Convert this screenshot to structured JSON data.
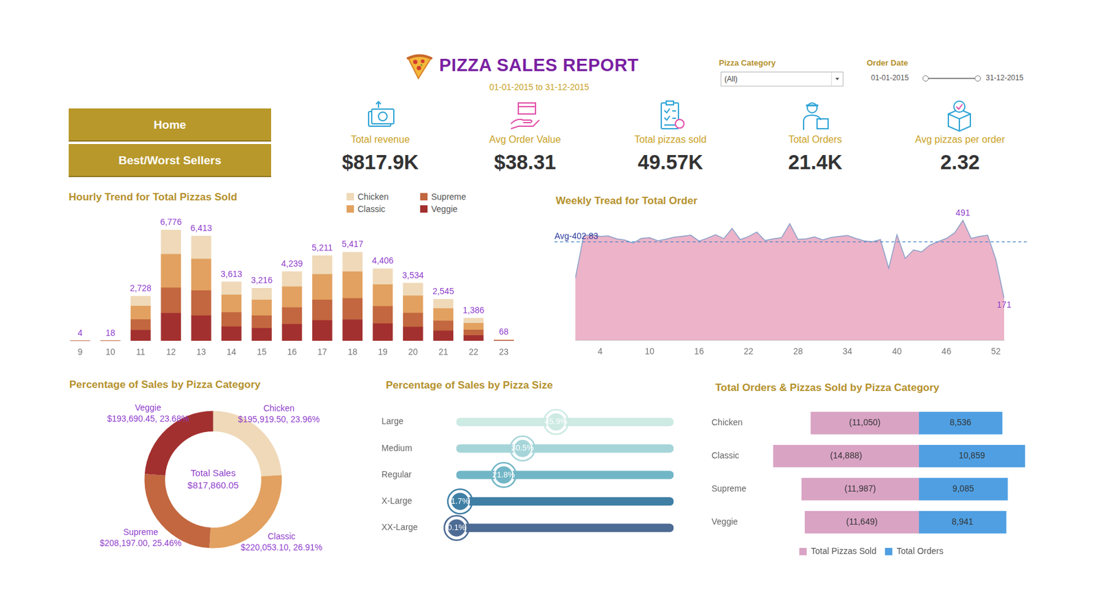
{
  "header": {
    "title": "PIZZA SALES REPORT",
    "subtitle": "01-01-2015 to 31-12-2015"
  },
  "filters": {
    "category_label": "Pizza Category",
    "category_value": "(All)",
    "date_label": "Order Date",
    "date_start": "01-01-2015",
    "date_end": "31-12-2015"
  },
  "nav": [
    "Home",
    "Best/Worst Sellers"
  ],
  "kpis": [
    {
      "label": "Total revenue",
      "value": "$817.9K"
    },
    {
      "label": "Avg Order Value",
      "value": "$38.31"
    },
    {
      "label": "Total pizzas sold",
      "value": "49.57K"
    },
    {
      "label": "Total Orders",
      "value": "21.4K"
    },
    {
      "label": "Avg pizzas per order",
      "value": "2.32"
    }
  ],
  "chart_data": [
    {
      "type": "bar",
      "title": "Hourly Trend for Total Pizzas Sold",
      "categories": [
        "9",
        "10",
        "11",
        "12",
        "13",
        "14",
        "15",
        "16",
        "17",
        "18",
        "19",
        "20",
        "21",
        "22",
        "23"
      ],
      "series": [
        {
          "name": "Chicken",
          "color": "#efd9b8",
          "values": [
            1,
            4,
            600,
            1480,
            1410,
            795,
            708,
            933,
            1146,
            1192,
            969,
            777,
            560,
            305,
            15
          ]
        },
        {
          "name": "Classic",
          "color": "#e2a160",
          "values": [
            1,
            5,
            820,
            2050,
            1925,
            1085,
            965,
            1272,
            1563,
            1625,
            1322,
            1060,
            764,
            416,
            20
          ]
        },
        {
          "name": "Supreme",
          "color": "#c2673f",
          "values": [
            1,
            4,
            655,
            1560,
            1540,
            867,
            772,
            1017,
            1251,
            1300,
            1058,
            849,
            611,
            333,
            17
          ]
        },
        {
          "name": "Veggie",
          "color": "#a2302f",
          "values": [
            1,
            5,
            653,
            1686,
            1538,
            866,
            771,
            1017,
            1251,
            1300,
            1057,
            848,
            610,
            332,
            16
          ]
        }
      ],
      "totals": [
        4,
        18,
        2728,
        6776,
        6413,
        3613,
        3216,
        4239,
        5211,
        5417,
        4406,
        3534,
        2545,
        1386,
        68
      ],
      "total_labels": [
        "4",
        "18",
        "2,728",
        "6,776",
        "6,413",
        "3,613",
        "3,216",
        "4,239",
        "5,211",
        "5,417",
        "4,406",
        "3,534",
        "2,545",
        "1,386",
        "68"
      ],
      "ylim": [
        0,
        7200
      ],
      "stacked": true,
      "tick_labels": "x",
      "legend": "top"
    },
    {
      "type": "area",
      "title": "Weekly Tread for Total Order",
      "x": [
        1,
        2,
        3,
        4,
        5,
        6,
        7,
        8,
        9,
        10,
        11,
        12,
        13,
        14,
        15,
        16,
        17,
        18,
        19,
        20,
        21,
        22,
        23,
        24,
        25,
        26,
        27,
        28,
        29,
        30,
        31,
        32,
        33,
        34,
        35,
        36,
        37,
        38,
        39,
        40,
        41,
        42,
        43,
        44,
        45,
        46,
        47,
        48,
        49,
        50,
        51,
        52,
        53
      ],
      "values": [
        254,
        428,
        432,
        425,
        427,
        415,
        410,
        398,
        417,
        420,
        407,
        414,
        422,
        426,
        430,
        406,
        418,
        432,
        416,
        458,
        412,
        425,
        443,
        408,
        415,
        420,
        477,
        413,
        415,
        423,
        411,
        421,
        425,
        429,
        417,
        407,
        403,
        412,
        295,
        432,
        335,
        370,
        362,
        390,
        404,
        417,
        440,
        491,
        417,
        425,
        430,
        330,
        171
      ],
      "color": "#ecb3c9",
      "xlim": [
        1,
        53
      ],
      "xticks": [
        4,
        10,
        16,
        22,
        28,
        34,
        40,
        46,
        52
      ],
      "ylim": [
        0,
        540
      ],
      "tick_labels": "x",
      "reference_line": {
        "value": 402.83,
        "label": "Avg-402.83"
      },
      "annotations": [
        {
          "x": 48,
          "text": "491"
        },
        {
          "x": 53,
          "text": "171"
        }
      ]
    },
    {
      "type": "doughnut",
      "title": "Percentage of Sales by Pizza Category",
      "categories": [
        "Chicken",
        "Classic",
        "Supreme",
        "Veggie"
      ],
      "values": [
        195919.5,
        220053.1,
        208197.0,
        193690.45
      ],
      "value_labels": [
        "$195,919.50, 23.96%",
        "$220,053.10, 26.91%",
        "$208,197.00, 25.46%",
        "$193,690.45, 23.68%"
      ],
      "colors": [
        "#efd9b8",
        "#e2a160",
        "#c2673f",
        "#a2302f"
      ],
      "center_label": "Total Sales",
      "total": 817860.05,
      "total_label": "$817,860.05",
      "data_labels": true
    },
    {
      "type": "bar",
      "title": "Percentage of Sales by Pizza Size",
      "orientation": "horizontal",
      "categories": [
        "Large",
        "Medium",
        "Regular",
        "X-Large",
        "XX-Large"
      ],
      "values": [
        45.9,
        30.5,
        21.8,
        1.7,
        0.1
      ],
      "value_labels": [
        "45.9%",
        "30.5%",
        "21.8%",
        "1.7%",
        "0.1%"
      ],
      "colors": [
        "#cdeae3",
        "#a6d5d9",
        "#71b6c6",
        "#3f7fa5",
        "#4d6b94"
      ],
      "xlim": [
        0,
        100
      ],
      "tick_labels": "y",
      "data_labels": true,
      "marker": "circle"
    },
    {
      "type": "bar",
      "title": "Total Orders & Pizzas Sold by Pizza Category",
      "orientation": "horizontal",
      "stacked": true,
      "categories": [
        "Chicken",
        "Classic",
        "Supreme",
        "Veggie"
      ],
      "series": [
        {
          "name": "Total Pizzas Sold",
          "color": "#d9a3c4",
          "values": [
            -11050,
            -14888,
            -11987,
            -11649
          ],
          "value_labels": [
            "(11,050)",
            "(14,888)",
            "(11,987)",
            "(11,649)"
          ]
        },
        {
          "name": "Total Orders",
          "color": "#4f9fe2",
          "values": [
            8536,
            10859,
            9085,
            8941
          ],
          "value_labels": [
            "8,536",
            "10,859",
            "9,085",
            "8,941"
          ]
        }
      ],
      "xlim": [
        -15500,
        11500
      ],
      "tick_labels": "y",
      "data_labels": true,
      "legend": "bottom"
    }
  ]
}
